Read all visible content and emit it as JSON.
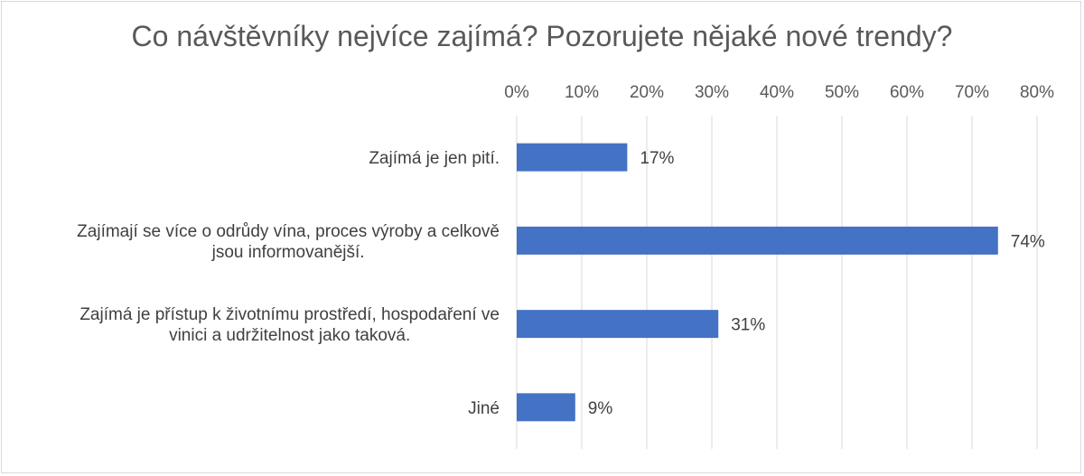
{
  "chart_data": {
    "type": "bar",
    "orientation": "horizontal",
    "title": "Co návštěvníky nejvíce zajímá? Pozorujete nějaké nové trendy?",
    "categories": [
      [
        "Zajímá je jen pití."
      ],
      [
        "Zajímají se více o odrůdy vína, proces výroby a celkově",
        "jsou informovanější."
      ],
      [
        "Zajímá je přístup k životnímu prostředí, hospodaření ve",
        "vinici a udržitelnost jako taková."
      ],
      [
        "Jiné"
      ]
    ],
    "values": [
      17,
      74,
      31,
      9
    ],
    "data_labels": [
      "17%",
      "74%",
      "31%",
      "9%"
    ],
    "xlim": [
      0,
      80
    ],
    "x_ticks": [
      "0%",
      "10%",
      "20%",
      "30%",
      "40%",
      "50%",
      "60%",
      "70%",
      "80%"
    ],
    "x_axis_position": "top",
    "grid": true,
    "bar_color": "#4472C4",
    "gridline_color": "#d9d9d9"
  }
}
